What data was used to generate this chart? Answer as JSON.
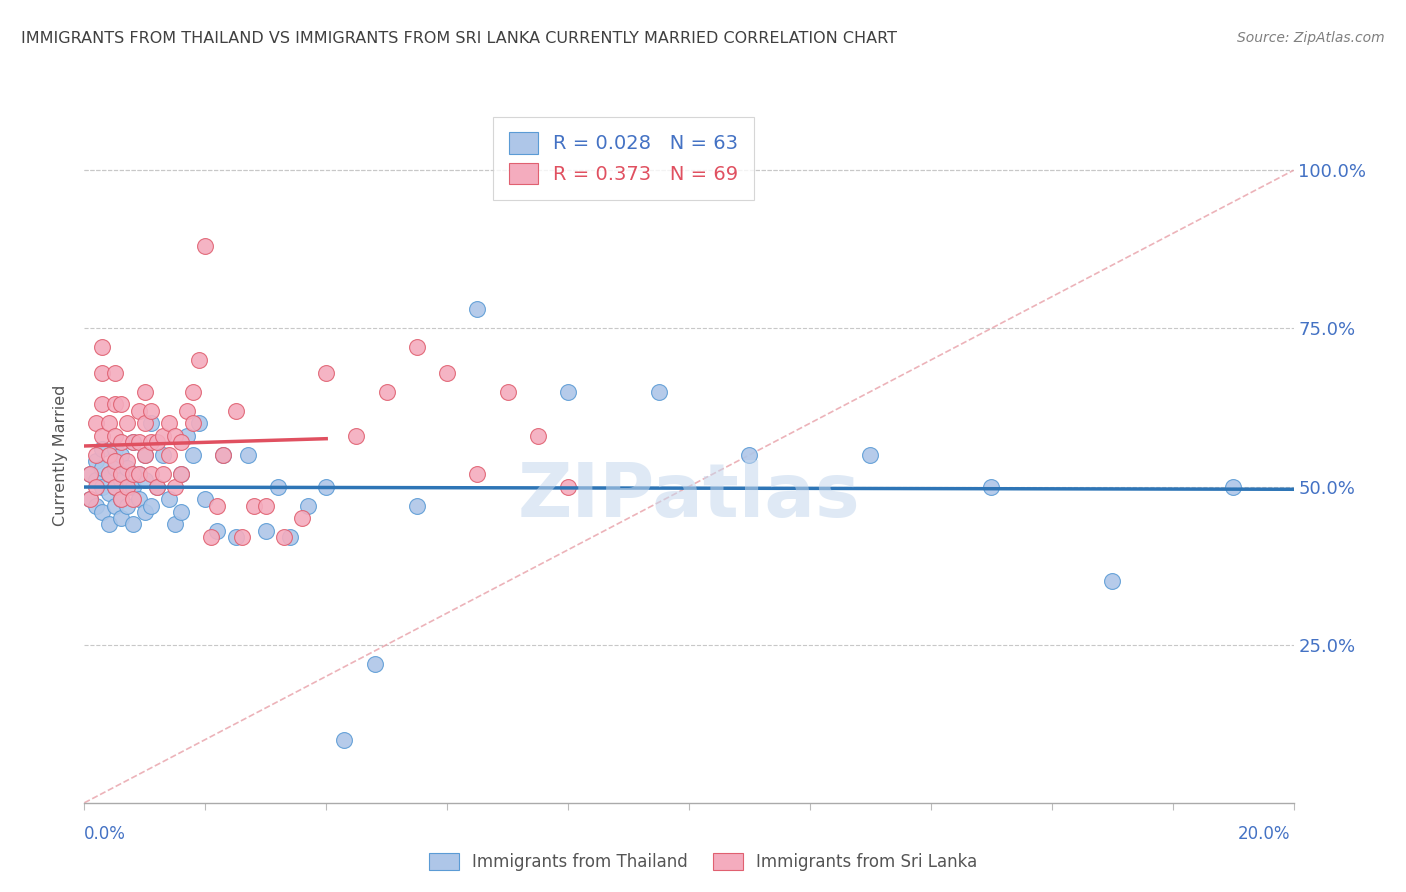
{
  "title": "IMMIGRANTS FROM THAILAND VS IMMIGRANTS FROM SRI LANKA CURRENTLY MARRIED CORRELATION CHART",
  "source": "Source: ZipAtlas.com",
  "ylabel": "Currently Married",
  "legend_thailand": "R = 0.028   N = 63",
  "legend_srilanka": "R = 0.373   N = 69",
  "legend_label_thailand": "Immigrants from Thailand",
  "legend_label_srilanka": "Immigrants from Sri Lanka",
  "color_thailand": "#AEC6E8",
  "color_srilanka": "#F4ACBE",
  "color_edge_thailand": "#5B9BD5",
  "color_edge_srilanka": "#E06070",
  "color_line_thailand": "#2E75B6",
  "color_line_srilanka": "#E05060",
  "color_diagonal": "#E8A0A8",
  "color_axis_labels": "#4472C4",
  "color_title": "#404040",
  "color_source": "#808080",
  "color_grid": "#C8C8C8",
  "xmin": 0.0,
  "xmax": 0.2,
  "ymin": 0.0,
  "ymax": 1.1,
  "thailand_x": [
    0.001,
    0.001,
    0.002,
    0.002,
    0.002,
    0.003,
    0.003,
    0.003,
    0.003,
    0.004,
    0.004,
    0.004,
    0.005,
    0.005,
    0.005,
    0.005,
    0.006,
    0.006,
    0.006,
    0.006,
    0.007,
    0.007,
    0.007,
    0.008,
    0.008,
    0.008,
    0.009,
    0.009,
    0.01,
    0.01,
    0.01,
    0.011,
    0.011,
    0.012,
    0.013,
    0.014,
    0.015,
    0.016,
    0.016,
    0.017,
    0.018,
    0.019,
    0.02,
    0.022,
    0.023,
    0.025,
    0.027,
    0.03,
    0.032,
    0.034,
    0.037,
    0.04,
    0.043,
    0.048,
    0.055,
    0.065,
    0.08,
    0.095,
    0.11,
    0.13,
    0.15,
    0.17,
    0.19
  ],
  "thailand_y": [
    0.48,
    0.52,
    0.47,
    0.51,
    0.54,
    0.46,
    0.5,
    0.53,
    0.56,
    0.44,
    0.49,
    0.52,
    0.47,
    0.5,
    0.53,
    0.56,
    0.45,
    0.48,
    0.51,
    0.55,
    0.47,
    0.5,
    0.53,
    0.44,
    0.5,
    0.57,
    0.48,
    0.52,
    0.46,
    0.51,
    0.55,
    0.47,
    0.6,
    0.5,
    0.55,
    0.48,
    0.44,
    0.52,
    0.46,
    0.58,
    0.55,
    0.6,
    0.48,
    0.43,
    0.55,
    0.42,
    0.55,
    0.43,
    0.5,
    0.42,
    0.47,
    0.5,
    0.1,
    0.22,
    0.47,
    0.78,
    0.65,
    0.65,
    0.55,
    0.55,
    0.5,
    0.35,
    0.5
  ],
  "srilanka_x": [
    0.001,
    0.001,
    0.002,
    0.002,
    0.002,
    0.003,
    0.003,
    0.003,
    0.003,
    0.004,
    0.004,
    0.004,
    0.005,
    0.005,
    0.005,
    0.005,
    0.005,
    0.006,
    0.006,
    0.006,
    0.006,
    0.007,
    0.007,
    0.007,
    0.008,
    0.008,
    0.008,
    0.009,
    0.009,
    0.009,
    0.01,
    0.01,
    0.01,
    0.011,
    0.011,
    0.011,
    0.012,
    0.012,
    0.013,
    0.013,
    0.014,
    0.014,
    0.015,
    0.015,
    0.016,
    0.016,
    0.017,
    0.018,
    0.018,
    0.019,
    0.02,
    0.021,
    0.022,
    0.023,
    0.025,
    0.026,
    0.028,
    0.03,
    0.033,
    0.036,
    0.04,
    0.045,
    0.05,
    0.055,
    0.06,
    0.065,
    0.07,
    0.075,
    0.08
  ],
  "srilanka_y": [
    0.48,
    0.52,
    0.5,
    0.55,
    0.6,
    0.58,
    0.63,
    0.68,
    0.72,
    0.52,
    0.55,
    0.6,
    0.5,
    0.54,
    0.58,
    0.63,
    0.68,
    0.48,
    0.52,
    0.57,
    0.63,
    0.5,
    0.54,
    0.6,
    0.48,
    0.52,
    0.57,
    0.52,
    0.57,
    0.62,
    0.55,
    0.6,
    0.65,
    0.52,
    0.57,
    0.62,
    0.5,
    0.57,
    0.52,
    0.58,
    0.55,
    0.6,
    0.5,
    0.58,
    0.52,
    0.57,
    0.62,
    0.6,
    0.65,
    0.7,
    0.88,
    0.42,
    0.47,
    0.55,
    0.62,
    0.42,
    0.47,
    0.47,
    0.42,
    0.45,
    0.68,
    0.58,
    0.65,
    0.72,
    0.68,
    0.52,
    0.65,
    0.58,
    0.5
  ],
  "background_color": "#FFFFFF"
}
